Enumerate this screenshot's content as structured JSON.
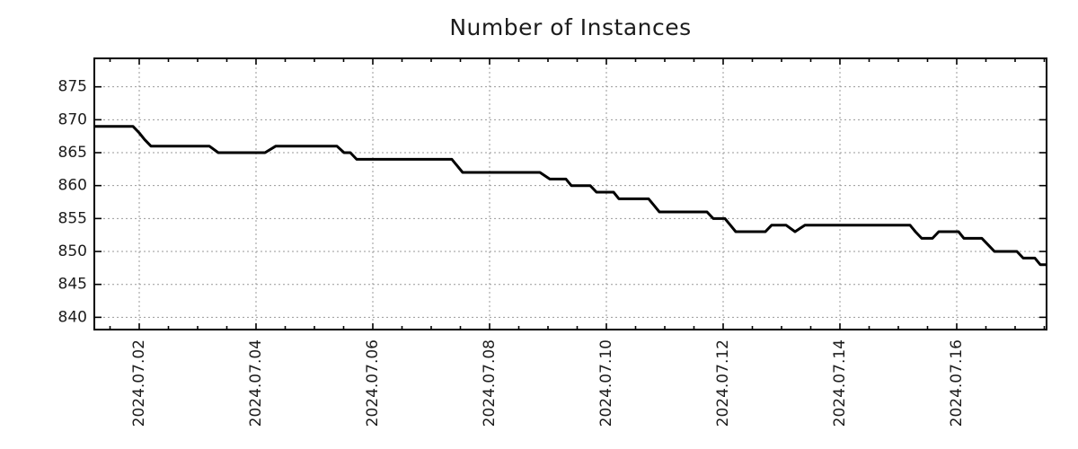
{
  "title": "Number of Instances",
  "colors": {
    "line": "#000000",
    "grid": "#999999",
    "spine": "#000000",
    "text": "#1c1c1c"
  },
  "chart_data": {
    "type": "line",
    "title": "Number of Instances",
    "xlabel": "",
    "ylabel": "",
    "x_unit": "day of July 2024 (fractional)",
    "grid": "dotted",
    "legend": false,
    "xlim": [
      1.2308,
      17.5385
    ],
    "ylim": [
      838.14,
      879.32
    ],
    "yticks": [
      840,
      845,
      850,
      855,
      860,
      865,
      870,
      875
    ],
    "xticks": [
      {
        "day": 2,
        "label": "2024.07.02"
      },
      {
        "day": 4,
        "label": "2024.07.04"
      },
      {
        "day": 6,
        "label": "2024.07.06"
      },
      {
        "day": 8,
        "label": "2024.07.08"
      },
      {
        "day": 10,
        "label": "2024.07.10"
      },
      {
        "day": 12,
        "label": "2024.07.12"
      },
      {
        "day": 14,
        "label": "2024.07.14"
      },
      {
        "day": 16,
        "label": "2024.07.16"
      }
    ],
    "minor_tick_step_days": 0.5,
    "series": [
      {
        "name": "Number of Instances",
        "color": "#000000",
        "points": [
          [
            1.231,
            869
          ],
          [
            1.892,
            869
          ],
          [
            2.0,
            868
          ],
          [
            2.092,
            867
          ],
          [
            2.2,
            866
          ],
          [
            3.2,
            866
          ],
          [
            3.354,
            865
          ],
          [
            4.154,
            865
          ],
          [
            4.338,
            866
          ],
          [
            5.385,
            866
          ],
          [
            5.508,
            865
          ],
          [
            5.615,
            865
          ],
          [
            5.723,
            864
          ],
          [
            7.354,
            864
          ],
          [
            7.446,
            863
          ],
          [
            7.538,
            862
          ],
          [
            8.862,
            862
          ],
          [
            9.031,
            861
          ],
          [
            9.308,
            861
          ],
          [
            9.4,
            860
          ],
          [
            9.723,
            860
          ],
          [
            9.831,
            859
          ],
          [
            10.123,
            859
          ],
          [
            10.215,
            858
          ],
          [
            10.723,
            858
          ],
          [
            10.815,
            857
          ],
          [
            10.908,
            856
          ],
          [
            11.723,
            856
          ],
          [
            11.831,
            855
          ],
          [
            12.031,
            855
          ],
          [
            12.123,
            854
          ],
          [
            12.215,
            853
          ],
          [
            12.723,
            853
          ],
          [
            12.831,
            854
          ],
          [
            13.077,
            854
          ],
          [
            13.231,
            853
          ],
          [
            13.4,
            854
          ],
          [
            15.2,
            854
          ],
          [
            15.292,
            853
          ],
          [
            15.4,
            852
          ],
          [
            15.585,
            852
          ],
          [
            15.692,
            853
          ],
          [
            16.031,
            853
          ],
          [
            16.123,
            852
          ],
          [
            16.431,
            852
          ],
          [
            16.538,
            851
          ],
          [
            16.646,
            850
          ],
          [
            17.031,
            850
          ],
          [
            17.138,
            849
          ],
          [
            17.338,
            849
          ],
          [
            17.431,
            848
          ],
          [
            17.538,
            848
          ]
        ]
      }
    ]
  }
}
